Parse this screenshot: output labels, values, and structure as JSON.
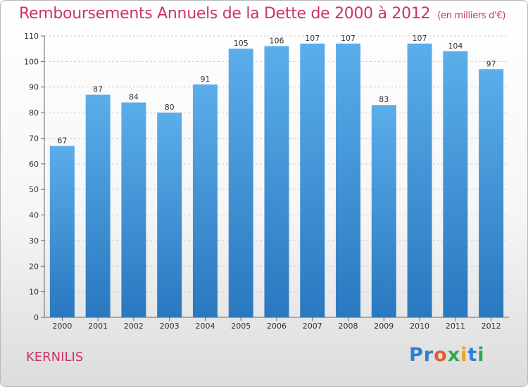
{
  "chart_data": {
    "type": "bar",
    "title": "Remboursements Annuels de la Dette de 2000 à 2012",
    "unit": "(en milliers d'€)",
    "categories": [
      "2000",
      "2001",
      "2002",
      "2003",
      "2004",
      "2005",
      "2006",
      "2007",
      "2008",
      "2009",
      "2010",
      "2011",
      "2012"
    ],
    "values": [
      67,
      87,
      84,
      80,
      91,
      105,
      106,
      107,
      107,
      83,
      107,
      104,
      97
    ],
    "ylim": [
      0,
      110
    ],
    "yticks": [
      0,
      10,
      20,
      30,
      40,
      50,
      60,
      70,
      80,
      90,
      100,
      110
    ],
    "grid": true,
    "bar_color": "#3b8fd6"
  },
  "place_name": "KERNILIS",
  "logo": {
    "letters": [
      "P",
      "r",
      "o",
      "x",
      "i",
      "t",
      "i"
    ],
    "colors": [
      "#2f7fd1",
      "#2f7fd1",
      "#e85c2b",
      "#2fa84f",
      "#f0a020",
      "#2f7fd1",
      "#2fa84f"
    ]
  }
}
